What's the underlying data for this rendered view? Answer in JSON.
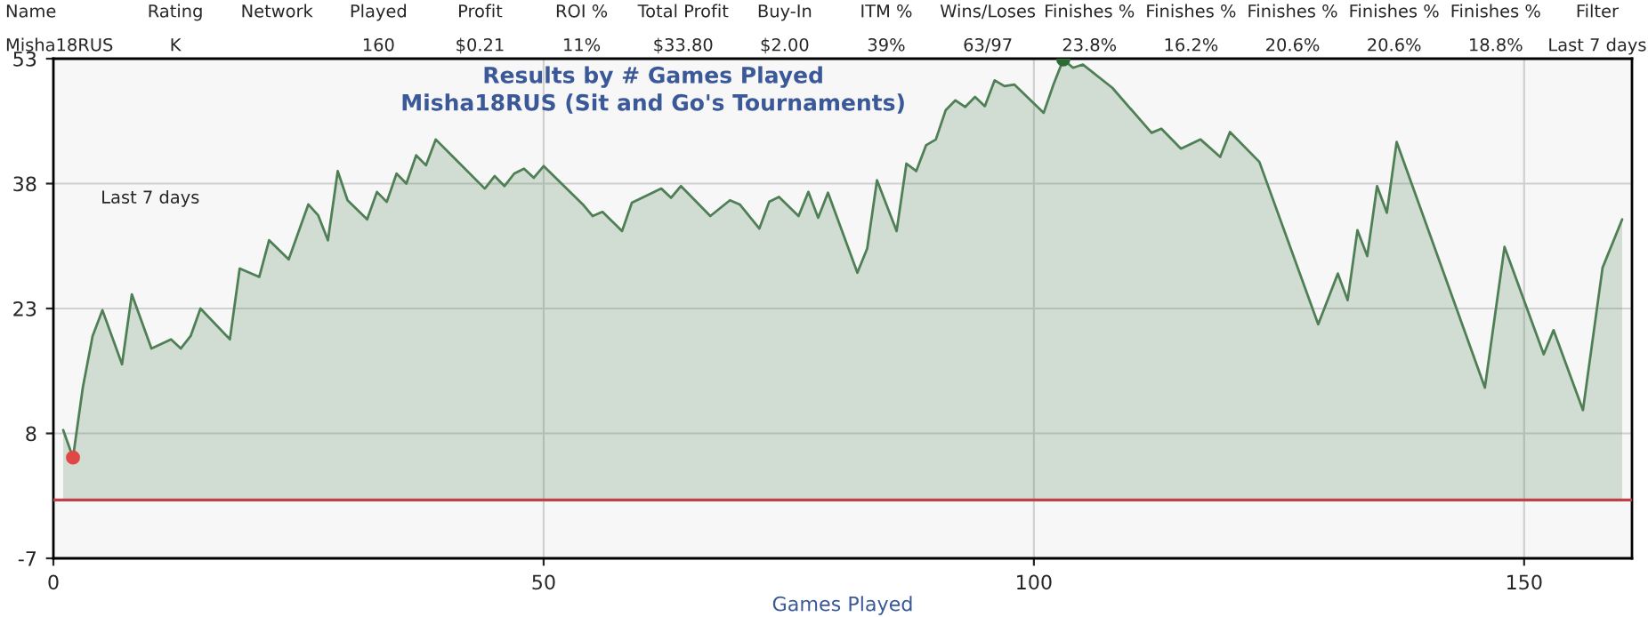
{
  "chart_data": {
    "type": "area",
    "title": "Results by # Games Played",
    "subtitle": "Misha18RUS (Sit and Go's Tournaments)",
    "xlabel": "Games Played",
    "xlim": [
      0,
      161
    ],
    "xticks": [
      0,
      50,
      100,
      150
    ],
    "ylim": [
      -7,
      53
    ],
    "yticks": [
      -7,
      8,
      23,
      38,
      53
    ],
    "grid": true,
    "ref_lines": [
      {
        "axis": "y",
        "value": 0,
        "color": "#c0404a"
      }
    ],
    "annotations": [
      "Last 7 days",
      "Name",
      "Rating",
      "Network",
      "Played",
      "Profit",
      "ROI %",
      "Total Profit",
      "Buy-In",
      "ITM %",
      "Wins/Loses",
      "Finishes %",
      "Finishes %",
      "Finishes %",
      "Finishes %",
      "Finishes %",
      "Filter",
      "Misha18RUS",
      "K",
      null,
      "160",
      "$0.21",
      "11%",
      "$33.80",
      "$2.00",
      "39%",
      "63/97",
      "23.8%",
      "16.2%",
      "20.6%",
      "20.6%",
      "18.8%",
      "Last 7 days"
    ],
    "series": [
      {
        "color": "#4f7f55",
        "x": [
          1,
          2,
          3,
          4,
          5,
          7,
          8,
          10,
          12,
          13,
          14,
          15,
          18,
          19,
          21,
          22,
          24,
          26,
          27,
          28,
          29,
          30,
          32,
          33,
          34,
          35,
          36,
          37,
          38,
          39,
          44,
          45,
          46,
          47,
          48,
          49,
          50,
          54,
          55,
          56,
          58,
          59,
          62,
          63,
          64,
          67,
          69,
          70,
          72,
          73,
          74,
          76,
          77,
          78,
          79,
          82,
          83,
          84,
          86,
          87,
          88,
          89,
          90,
          91,
          92,
          93,
          94,
          95,
          96,
          97,
          98,
          101,
          102,
          103,
          104,
          105,
          108,
          112,
          113,
          115,
          117,
          119,
          120,
          123,
          129,
          131,
          132,
          133,
          134,
          135,
          136,
          137,
          146,
          148,
          152,
          153,
          156,
          158,
          160
        ],
        "values": [
          8.4,
          5.1,
          13.5,
          19.7,
          22.8,
          16.3,
          24.7,
          18.2,
          19.3,
          18.2,
          19.7,
          23.0,
          19.3,
          27.8,
          26.8,
          31.2,
          28.9,
          35.5,
          34.2,
          31.2,
          39.5,
          36.0,
          33.7,
          37.0,
          35.8,
          39.2,
          38.0,
          41.4,
          40.2,
          43.3,
          37.4,
          38.9,
          37.7,
          39.2,
          39.8,
          38.7,
          40.1,
          35.5,
          34.1,
          34.6,
          32.3,
          35.7,
          37.4,
          36.3,
          37.7,
          34.1,
          36.0,
          35.5,
          32.6,
          35.8,
          36.4,
          34.1,
          37.0,
          33.9,
          36.9,
          27.3,
          30.2,
          38.4,
          32.3,
          40.4,
          39.5,
          42.6,
          43.3,
          46.8,
          48.0,
          47.2,
          48.4,
          47.3,
          50.4,
          49.7,
          49.9,
          46.5,
          49.9,
          52.9,
          51.9,
          52.3,
          49.5,
          44.1,
          44.6,
          42.2,
          43.3,
          41.2,
          44.2,
          40.6,
          21.1,
          27.2,
          24.0,
          32.4,
          29.3,
          37.7,
          34.5,
          43.0,
          13.5,
          30.4,
          17.5,
          20.4,
          10.8,
          27.9,
          33.7
        ]
      },
      {
        "type": "scatter",
        "color": "#e04848",
        "x": [
          2
        ],
        "values": [
          5.1
        ]
      },
      {
        "type": "scatter",
        "color": "#2e6b34",
        "x": [
          103
        ],
        "values": [
          52.9
        ]
      }
    ]
  }
}
